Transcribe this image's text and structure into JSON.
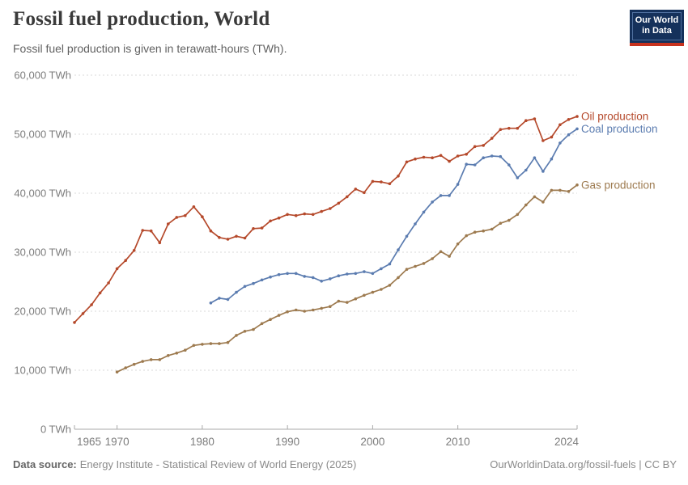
{
  "header": {
    "title": "Fossil fuel production, World",
    "subtitle": "Fossil fuel production is given in terawatt-hours (TWh)."
  },
  "logo": {
    "line1": "Our World",
    "line2": "in Data"
  },
  "footer": {
    "source_label": "Data source:",
    "source_text": "Energy Institute - Statistical Review of World Energy (2025)",
    "attribution": "OurWorldinData.org/fossil-fuels | CC BY"
  },
  "colors": {
    "oil": "#B5492B",
    "coal": "#5B7CB0",
    "gas": "#9D7A4F",
    "gridline": "#dadada",
    "axis": "#a8a8a8",
    "tick_label": "#7d7d7d"
  },
  "chart_data": {
    "type": "line",
    "title": "Fossil fuel production, World",
    "unit": "TWh",
    "grid": "dashed-horizontal",
    "legend_position": "end-of-line-labels",
    "x_axis": {
      "range": [
        1965,
        2024
      ],
      "ticks": [
        {
          "value": 1965,
          "label": "1965"
        },
        {
          "value": 1970,
          "label": "1970"
        },
        {
          "value": 1980,
          "label": "1980"
        },
        {
          "value": 1990,
          "label": "1990"
        },
        {
          "value": 2000,
          "label": "2000"
        },
        {
          "value": 2010,
          "label": "2010"
        },
        {
          "value": 2024,
          "label": "2024"
        }
      ]
    },
    "y_axis": {
      "range": [
        0,
        60000
      ],
      "ticks": [
        {
          "value": 0,
          "label": "0 TWh"
        },
        {
          "value": 10000,
          "label": "10,000 TWh"
        },
        {
          "value": 20000,
          "label": "20,000 TWh"
        },
        {
          "value": 30000,
          "label": "30,000 TWh"
        },
        {
          "value": 40000,
          "label": "40,000 TWh"
        },
        {
          "value": 50000,
          "label": "50,000 TWh"
        },
        {
          "value": 60000,
          "label": "60,000 TWh"
        }
      ]
    },
    "series": [
      {
        "id": "oil",
        "name": "Oil production",
        "color": "#B5492B",
        "start_year": 1965,
        "end_year": 2024,
        "values": [
          18100,
          19600,
          21100,
          23100,
          24800,
          27200,
          28600,
          30300,
          33700,
          33600,
          31600,
          34800,
          35900,
          36200,
          37700,
          36000,
          33600,
          32500,
          32200,
          32700,
          32400,
          34000,
          34100,
          35300,
          35800,
          36400,
          36200,
          36500,
          36400,
          36900,
          37400,
          38300,
          39400,
          40700,
          40100,
          42000,
          41900,
          41600,
          42900,
          45300,
          45800,
          46100,
          46000,
          46400,
          45400,
          46300,
          46600,
          47900,
          48100,
          49300,
          50800,
          51000,
          51000,
          52300,
          52600,
          48900,
          49500,
          51600,
          52500,
          53000
        ]
      },
      {
        "id": "coal",
        "name": "Coal production",
        "color": "#5B7CB0",
        "start_year": 1981,
        "end_year": 2024,
        "values": [
          21400,
          22200,
          22000,
          23200,
          24200,
          24700,
          25300,
          25800,
          26200,
          26400,
          26400,
          25900,
          25700,
          25100,
          25500,
          26000,
          26300,
          26400,
          26700,
          26400,
          27200,
          28000,
          30400,
          32700,
          34800,
          36800,
          38500,
          39600,
          39600,
          41500,
          44900,
          44800,
          46000,
          46300,
          46200,
          44800,
          42600,
          43900,
          46000,
          43700,
          45800,
          48500,
          49900,
          50900
        ]
      },
      {
        "id": "gas",
        "name": "Gas production",
        "color": "#9D7A4F",
        "start_year": 1970,
        "end_year": 2024,
        "values": [
          9700,
          10400,
          11000,
          11500,
          11800,
          11800,
          12500,
          12900,
          13400,
          14200,
          14400,
          14500,
          14500,
          14700,
          15900,
          16600,
          16900,
          17900,
          18600,
          19300,
          19900,
          20200,
          20000,
          20200,
          20500,
          20800,
          21700,
          21500,
          22100,
          22700,
          23200,
          23700,
          24400,
          25700,
          27100,
          27600,
          28100,
          28900,
          30100,
          29300,
          31400,
          32800,
          33400,
          33600,
          33900,
          34900,
          35400,
          36400,
          38000,
          39400,
          38500,
          40500,
          40500,
          40300,
          41400
        ]
      }
    ]
  }
}
